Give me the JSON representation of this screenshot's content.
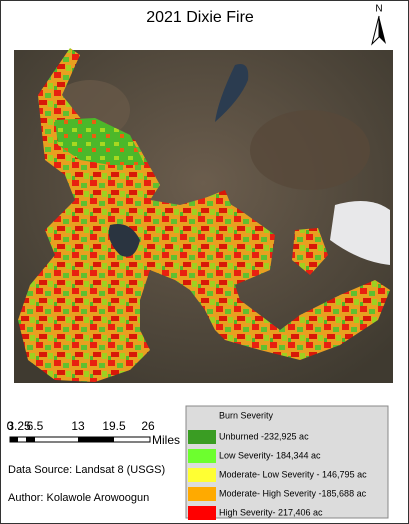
{
  "map": {
    "title": "2021 Dixie Fire",
    "north_label": "N",
    "scale_bar": {
      "labels": [
        "0",
        "3.25",
        "6.5",
        "13",
        "19.5",
        "26"
      ],
      "unit": "Miles"
    },
    "data_source": "Data Source: Landsat 8 (USGS)",
    "author": "Author: Kolawole Arowoogun",
    "legend": {
      "title": "Burn Severity",
      "items": [
        {
          "label": "Unburned -232,925 ac",
          "color": "#3a9d23"
        },
        {
          "label": "Low Severity- 184,344 ac",
          "color": "#6dff2e"
        },
        {
          "label": "Moderate- Low Severity - 146,795 ac",
          "color": "#ffff33"
        },
        {
          "label": "Moderate- High Severity -185,688 ac",
          "color": "#ffaa00"
        },
        {
          "label": "High Severity- 217,406 ac",
          "color": "#ff0000"
        }
      ]
    }
  }
}
